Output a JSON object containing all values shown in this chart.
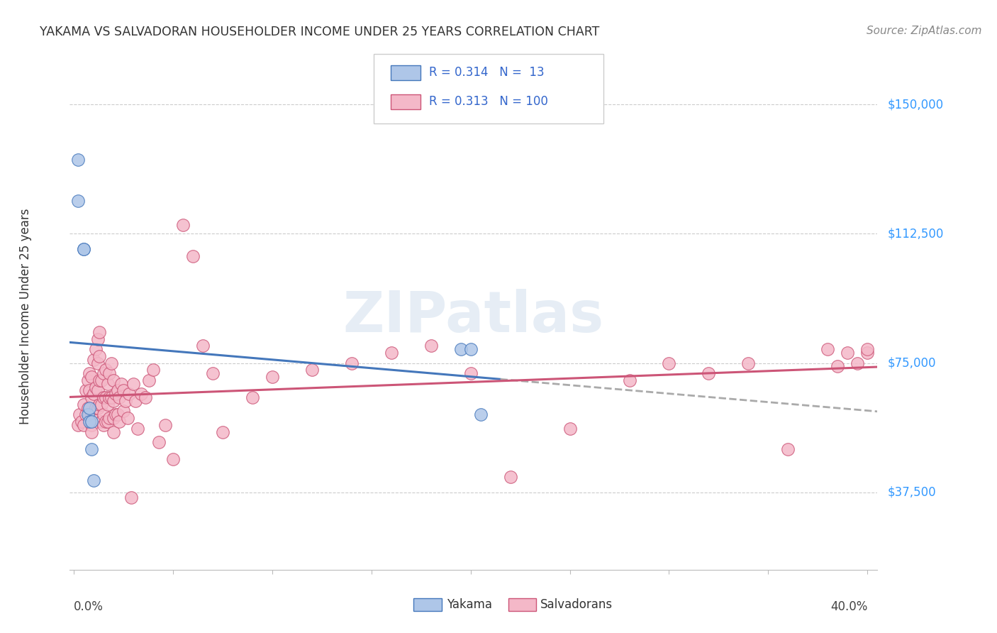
{
  "title": "YAKAMA VS SALVADORAN HOUSEHOLDER INCOME UNDER 25 YEARS CORRELATION CHART",
  "source": "Source: ZipAtlas.com",
  "ylabel": "Householder Income Under 25 years",
  "ytick_labels": [
    "$37,500",
    "$75,000",
    "$112,500",
    "$150,000"
  ],
  "ytick_values": [
    37500,
    75000,
    112500,
    150000
  ],
  "ymin": 15000,
  "ymax": 162000,
  "xmin": -0.002,
  "xmax": 0.405,
  "legend_blue_r": "0.314",
  "legend_blue_n": "13",
  "legend_pink_r": "0.313",
  "legend_pink_n": "100",
  "blue_color": "#aec6e8",
  "pink_color": "#f4b8c8",
  "trendline_blue_color": "#4477bb",
  "trendline_pink_color": "#cc5577",
  "trendline_dashed_color": "#aaaaaa",
  "background_color": "#ffffff",
  "watermark": "ZIPatlas",
  "yakama_x": [
    0.002,
    0.002,
    0.005,
    0.005,
    0.007,
    0.008,
    0.008,
    0.009,
    0.009,
    0.01,
    0.195,
    0.2,
    0.205
  ],
  "yakama_y": [
    134000,
    122000,
    108000,
    108000,
    60000,
    62000,
    58000,
    58000,
    50000,
    41000,
    79000,
    79000,
    60000
  ],
  "salvadoran_x": [
    0.002,
    0.003,
    0.004,
    0.005,
    0.005,
    0.006,
    0.006,
    0.007,
    0.007,
    0.008,
    0.008,
    0.008,
    0.009,
    0.009,
    0.009,
    0.009,
    0.009,
    0.01,
    0.01,
    0.011,
    0.011,
    0.011,
    0.012,
    0.012,
    0.012,
    0.012,
    0.013,
    0.013,
    0.013,
    0.013,
    0.014,
    0.014,
    0.014,
    0.015,
    0.015,
    0.015,
    0.015,
    0.016,
    0.016,
    0.016,
    0.017,
    0.017,
    0.017,
    0.018,
    0.018,
    0.018,
    0.019,
    0.019,
    0.02,
    0.02,
    0.02,
    0.02,
    0.021,
    0.021,
    0.022,
    0.022,
    0.023,
    0.023,
    0.024,
    0.025,
    0.025,
    0.026,
    0.027,
    0.028,
    0.029,
    0.03,
    0.031,
    0.032,
    0.034,
    0.036,
    0.038,
    0.04,
    0.043,
    0.046,
    0.05,
    0.055,
    0.06,
    0.065,
    0.07,
    0.075,
    0.09,
    0.1,
    0.12,
    0.14,
    0.16,
    0.18,
    0.2,
    0.22,
    0.25,
    0.28,
    0.3,
    0.32,
    0.34,
    0.36,
    0.38,
    0.385,
    0.39,
    0.395,
    0.4,
    0.4
  ],
  "salvadoran_y": [
    57000,
    60000,
    58000,
    63000,
    57000,
    67000,
    60000,
    70000,
    62000,
    72000,
    67000,
    60000,
    71000,
    65000,
    60000,
    57000,
    55000,
    76000,
    66000,
    79000,
    68000,
    62000,
    82000,
    75000,
    67000,
    62000,
    84000,
    77000,
    70000,
    63000,
    70000,
    63000,
    58000,
    72000,
    65000,
    60000,
    57000,
    73000,
    65000,
    58000,
    69000,
    63000,
    58000,
    72000,
    65000,
    59000,
    75000,
    65000,
    70000,
    64000,
    59000,
    55000,
    66000,
    60000,
    67000,
    60000,
    65000,
    58000,
    69000,
    67000,
    61000,
    64000,
    59000,
    66000,
    36000,
    69000,
    64000,
    56000,
    66000,
    65000,
    70000,
    73000,
    52000,
    57000,
    47000,
    115000,
    106000,
    80000,
    72000,
    55000,
    65000,
    71000,
    73000,
    75000,
    78000,
    80000,
    72000,
    42000,
    56000,
    70000,
    75000,
    72000,
    75000,
    50000,
    79000,
    74000,
    78000,
    75000,
    78000,
    79000
  ]
}
